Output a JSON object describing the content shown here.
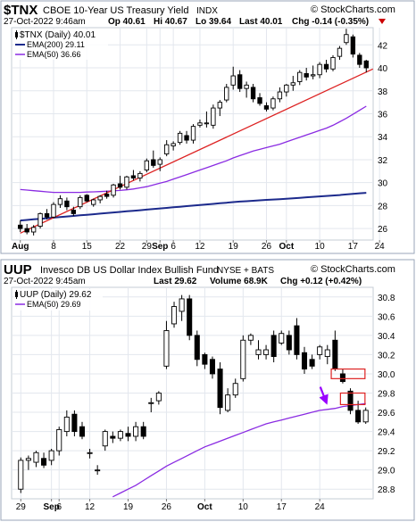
{
  "chart_data": [
    {
      "type": "candlestick",
      "symbol": "$TNX",
      "title": "CBOE 10-Year US Treasury Yield",
      "exchange": "INDX",
      "watermark": "© StockCharts.com",
      "header": {
        "timestamp": "27-Oct-2022 9:46am",
        "open": "Op 40.61",
        "high": "Hi 40.67",
        "low": "Lo 39.64",
        "last": "Last 40.01",
        "change": "Chg -0.14 (-0.35%)",
        "change_color": "#cc0000"
      },
      "legend": [
        {
          "label": "$TNX (Daily) 40.01",
          "color": "#000000",
          "kind": "candle"
        },
        {
          "label": "EMA(200) 29.11",
          "color": "#1c2a8c",
          "kind": "line"
        },
        {
          "label": "EMA(50) 36.66",
          "color": "#8a2be2",
          "kind": "line"
        }
      ],
      "x_tick_labels": [
        "Aug",
        "8",
        "15",
        "22",
        "29",
        "Sep",
        "6",
        "12",
        "19",
        "26",
        "Oct",
        "10",
        "17",
        "24"
      ],
      "y_ticks": [
        26,
        28,
        30,
        32,
        34,
        36,
        38,
        40,
        42
      ],
      "ylim": [
        25,
        43.5
      ],
      "candles": [
        {
          "o": 26.3,
          "h": 26.7,
          "l": 25.7,
          "c": 26.0
        },
        {
          "o": 26.0,
          "h": 26.4,
          "l": 25.5,
          "c": 25.7
        },
        {
          "o": 25.7,
          "h": 26.3,
          "l": 25.4,
          "c": 26.1
        },
        {
          "o": 26.2,
          "h": 27.4,
          "l": 26.0,
          "c": 27.3
        },
        {
          "o": 27.3,
          "h": 27.7,
          "l": 26.8,
          "c": 27.0
        },
        {
          "o": 27.0,
          "h": 28.3,
          "l": 26.9,
          "c": 28.1
        },
        {
          "o": 28.1,
          "h": 28.9,
          "l": 27.8,
          "c": 28.6
        },
        {
          "o": 28.4,
          "h": 28.7,
          "l": 27.6,
          "c": 27.9
        },
        {
          "o": 27.6,
          "h": 27.9,
          "l": 27.1,
          "c": 27.3
        },
        {
          "o": 27.9,
          "h": 28.9,
          "l": 27.7,
          "c": 28.7
        },
        {
          "o": 28.9,
          "h": 29.0,
          "l": 28.3,
          "c": 28.4
        },
        {
          "o": 28.1,
          "h": 28.6,
          "l": 27.9,
          "c": 28.5
        },
        {
          "o": 28.5,
          "h": 28.9,
          "l": 28.2,
          "c": 28.8
        },
        {
          "o": 29.0,
          "h": 29.3,
          "l": 28.6,
          "c": 28.8
        },
        {
          "o": 28.9,
          "h": 29.9,
          "l": 28.7,
          "c": 29.8
        },
        {
          "o": 29.9,
          "h": 30.6,
          "l": 29.4,
          "c": 29.6
        },
        {
          "o": 29.6,
          "h": 30.6,
          "l": 29.4,
          "c": 30.5
        },
        {
          "o": 30.6,
          "h": 31.1,
          "l": 30.2,
          "c": 30.4
        },
        {
          "o": 30.4,
          "h": 31.0,
          "l": 30.1,
          "c": 30.8
        },
        {
          "o": 31.1,
          "h": 32.1,
          "l": 30.9,
          "c": 31.9
        },
        {
          "o": 32.0,
          "h": 32.8,
          "l": 31.3,
          "c": 31.5
        },
        {
          "o": 31.6,
          "h": 32.2,
          "l": 31.0,
          "c": 32.0
        },
        {
          "o": 32.5,
          "h": 33.7,
          "l": 32.3,
          "c": 33.3
        },
        {
          "o": 33.2,
          "h": 33.6,
          "l": 32.8,
          "c": 33.4
        },
        {
          "o": 33.5,
          "h": 34.5,
          "l": 33.3,
          "c": 34.3
        },
        {
          "o": 34.1,
          "h": 34.5,
          "l": 33.4,
          "c": 33.7
        },
        {
          "o": 33.7,
          "h": 35.1,
          "l": 33.4,
          "c": 34.9
        },
        {
          "o": 35.0,
          "h": 35.5,
          "l": 34.8,
          "c": 35.2
        },
        {
          "o": 35.2,
          "h": 36.2,
          "l": 34.8,
          "c": 35.2
        },
        {
          "o": 35.0,
          "h": 36.8,
          "l": 34.7,
          "c": 36.5
        },
        {
          "o": 36.5,
          "h": 37.2,
          "l": 35.8,
          "c": 37.0
        },
        {
          "o": 37.2,
          "h": 38.6,
          "l": 37.0,
          "c": 38.3
        },
        {
          "o": 38.5,
          "h": 40.1,
          "l": 38.1,
          "c": 39.3
        },
        {
          "o": 39.4,
          "h": 39.8,
          "l": 37.9,
          "c": 38.2
        },
        {
          "o": 38.2,
          "h": 38.8,
          "l": 37.4,
          "c": 38.5
        },
        {
          "o": 38.3,
          "h": 38.6,
          "l": 37.0,
          "c": 37.3
        },
        {
          "o": 37.4,
          "h": 37.8,
          "l": 36.7,
          "c": 36.9
        },
        {
          "o": 36.7,
          "h": 37.0,
          "l": 36.2,
          "c": 36.4
        },
        {
          "o": 36.5,
          "h": 37.5,
          "l": 36.3,
          "c": 37.3
        },
        {
          "o": 37.3,
          "h": 38.3,
          "l": 37.0,
          "c": 37.9
        },
        {
          "o": 37.9,
          "h": 38.6,
          "l": 37.5,
          "c": 38.5
        },
        {
          "o": 38.5,
          "h": 39.3,
          "l": 38.0,
          "c": 38.7
        },
        {
          "o": 38.8,
          "h": 39.8,
          "l": 38.5,
          "c": 39.6
        },
        {
          "o": 39.5,
          "h": 40.0,
          "l": 38.9,
          "c": 39.2
        },
        {
          "o": 39.3,
          "h": 40.2,
          "l": 39.0,
          "c": 39.4
        },
        {
          "o": 39.4,
          "h": 40.5,
          "l": 39.1,
          "c": 40.3
        },
        {
          "o": 40.3,
          "h": 40.7,
          "l": 39.6,
          "c": 39.9
        },
        {
          "o": 39.9,
          "h": 41.1,
          "l": 39.7,
          "c": 40.9
        },
        {
          "o": 41.0,
          "h": 41.9,
          "l": 40.7,
          "c": 41.7
        },
        {
          "o": 42.2,
          "h": 43.4,
          "l": 42.0,
          "c": 42.9
        },
        {
          "o": 42.7,
          "h": 42.9,
          "l": 40.9,
          "c": 41.2
        },
        {
          "o": 41.1,
          "h": 41.3,
          "l": 40.0,
          "c": 40.3
        },
        {
          "o": 40.6,
          "h": 40.7,
          "l": 39.6,
          "c": 40.0
        }
      ],
      "ema200": [
        26.7,
        26.75,
        26.8,
        26.85,
        26.9,
        26.95,
        27.0,
        27.05,
        27.1,
        27.15,
        27.2,
        27.25,
        27.3,
        27.35,
        27.4,
        27.45,
        27.5,
        27.55,
        27.6,
        27.65,
        27.7,
        27.75,
        27.8,
        27.85,
        27.9,
        27.95,
        28.0,
        28.05,
        28.1,
        28.15,
        28.2,
        28.25,
        28.3,
        28.35,
        28.38,
        28.42,
        28.46,
        28.5,
        28.53,
        28.56,
        28.6,
        28.64,
        28.68,
        28.72,
        28.76,
        28.8,
        28.84,
        28.88,
        28.92,
        28.97,
        29.02,
        29.07,
        29.11
      ],
      "ema50": [
        29.4,
        29.35,
        29.3,
        29.25,
        29.2,
        29.15,
        29.15,
        29.15,
        29.15,
        29.15,
        29.18,
        29.2,
        29.22,
        29.25,
        29.28,
        29.32,
        29.38,
        29.45,
        29.55,
        29.65,
        29.8,
        29.95,
        30.1,
        30.3,
        30.5,
        30.7,
        30.9,
        31.1,
        31.3,
        31.5,
        31.7,
        31.9,
        32.15,
        32.35,
        32.55,
        32.75,
        32.9,
        33.05,
        33.2,
        33.35,
        33.55,
        33.75,
        33.95,
        34.15,
        34.35,
        34.55,
        34.75,
        35.0,
        35.3,
        35.6,
        35.95,
        36.3,
        36.66
      ],
      "trendline": {
        "from": [
          0,
          25.6
        ],
        "to": [
          52,
          39.9
        ],
        "color": "#dd2222"
      }
    },
    {
      "type": "candlestick",
      "symbol": "UUP",
      "title": "Invesco DB US Dollar Index Bullish Fund",
      "exchange": "NYSE + BATS",
      "watermark": "© StockCharts.com",
      "header": {
        "timestamp": "27-Oct-2022 9:45am",
        "last": "Last 29.62",
        "volume": "Volume 68.9K",
        "change": "Chg +0.12 (+0.42%)",
        "change_color": "#000000"
      },
      "legend": [
        {
          "label": "UUP (Daily) 29.62",
          "color": "#000000",
          "kind": "candle"
        },
        {
          "label": "EMA(50) 29.69",
          "color": "#8a2be2",
          "kind": "line"
        }
      ],
      "x_tick_labels": [
        "29",
        "Sep",
        "6",
        "12",
        "19",
        "26",
        "Oct",
        "10",
        "17",
        "24"
      ],
      "y_ticks": [
        28.8,
        29.0,
        29.2,
        29.4,
        29.6,
        29.8,
        30.0,
        30.2,
        30.4,
        30.6,
        30.8
      ],
      "ylim": [
        28.7,
        30.9
      ],
      "candles": [
        {
          "o": 28.8,
          "h": 29.13,
          "l": 28.76,
          "c": 29.1
        },
        {
          "o": 29.1,
          "h": 29.15,
          "l": 29.0,
          "c": 29.12
        },
        {
          "o": 29.08,
          "h": 29.2,
          "l": 29.03,
          "c": 29.18
        },
        {
          "o": 29.12,
          "h": 29.18,
          "l": 29.02,
          "c": 29.05
        },
        {
          "o": 29.1,
          "h": 29.22,
          "l": 29.05,
          "c": 29.2
        },
        {
          "o": 29.2,
          "h": 29.45,
          "l": 29.15,
          "c": 29.42
        },
        {
          "o": 29.4,
          "h": 29.62,
          "l": 29.35,
          "c": 29.55
        },
        {
          "o": 29.58,
          "h": 29.62,
          "l": 29.35,
          "c": 29.4
        },
        {
          "o": 29.45,
          "h": 29.5,
          "l": 29.32,
          "c": 29.35
        },
        {
          "o": 29.18,
          "h": 29.22,
          "l": 29.12,
          "c": 29.18
        },
        {
          "o": 29.0,
          "h": 29.05,
          "l": 28.95,
          "c": 29.0
        },
        {
          "o": 29.25,
          "h": 29.42,
          "l": 29.2,
          "c": 29.4
        },
        {
          "o": 29.35,
          "h": 29.4,
          "l": 29.28,
          "c": 29.33
        },
        {
          "o": 29.33,
          "h": 29.42,
          "l": 29.3,
          "c": 29.4
        },
        {
          "o": 29.38,
          "h": 29.45,
          "l": 29.3,
          "c": 29.35
        },
        {
          "o": 29.35,
          "h": 29.5,
          "l": 29.3,
          "c": 29.45
        },
        {
          "o": 29.45,
          "h": 29.5,
          "l": 29.32,
          "c": 29.35
        },
        {
          "o": 29.7,
          "h": 29.75,
          "l": 29.6,
          "c": 29.7
        },
        {
          "o": 29.72,
          "h": 29.82,
          "l": 29.68,
          "c": 29.8
        },
        {
          "o": 30.08,
          "h": 30.55,
          "l": 30.05,
          "c": 30.45
        },
        {
          "o": 30.52,
          "h": 30.75,
          "l": 30.48,
          "c": 30.7
        },
        {
          "o": 30.65,
          "h": 30.82,
          "l": 30.55,
          "c": 30.78
        },
        {
          "o": 30.78,
          "h": 30.82,
          "l": 30.35,
          "c": 30.4
        },
        {
          "o": 30.4,
          "h": 30.45,
          "l": 30.08,
          "c": 30.15
        },
        {
          "o": 30.2,
          "h": 30.22,
          "l": 30.05,
          "c": 30.1
        },
        {
          "o": 30.15,
          "h": 30.18,
          "l": 29.95,
          "c": 30.0
        },
        {
          "o": 30.05,
          "h": 30.12,
          "l": 29.58,
          "c": 29.65
        },
        {
          "o": 29.62,
          "h": 29.85,
          "l": 29.6,
          "c": 29.78
        },
        {
          "o": 29.78,
          "h": 29.95,
          "l": 29.75,
          "c": 29.9
        },
        {
          "o": 29.95,
          "h": 30.4,
          "l": 29.92,
          "c": 30.35
        },
        {
          "o": 30.35,
          "h": 30.42,
          "l": 30.3,
          "c": 30.4
        },
        {
          "o": 30.2,
          "h": 30.35,
          "l": 30.15,
          "c": 30.25
        },
        {
          "o": 30.2,
          "h": 30.3,
          "l": 30.15,
          "c": 30.25
        },
        {
          "o": 30.4,
          "h": 30.45,
          "l": 30.12,
          "c": 30.18
        },
        {
          "o": 30.32,
          "h": 30.45,
          "l": 30.3,
          "c": 30.42
        },
        {
          "o": 30.4,
          "h": 30.45,
          "l": 30.2,
          "c": 30.25
        },
        {
          "o": 30.5,
          "h": 30.58,
          "l": 30.15,
          "c": 30.2
        },
        {
          "o": 30.22,
          "h": 30.28,
          "l": 30.0,
          "c": 30.05
        },
        {
          "o": 30.15,
          "h": 30.2,
          "l": 30.05,
          "c": 30.08
        },
        {
          "o": 30.2,
          "h": 30.3,
          "l": 30.15,
          "c": 30.28
        },
        {
          "o": 30.18,
          "h": 30.3,
          "l": 30.1,
          "c": 30.25
        },
        {
          "o": 30.35,
          "h": 30.45,
          "l": 30.03,
          "c": 30.05
        },
        {
          "o": 30.0,
          "h": 30.05,
          "l": 29.9,
          "c": 29.92
        },
        {
          "o": 29.82,
          "h": 29.85,
          "l": 29.58,
          "c": 29.62
        },
        {
          "o": 29.62,
          "h": 29.72,
          "l": 29.48,
          "c": 29.5
        },
        {
          "o": 29.5,
          "h": 29.65,
          "l": 29.48,
          "c": 29.62
        }
      ],
      "ema50": [
        null,
        null,
        null,
        null,
        null,
        null,
        null,
        null,
        null,
        null,
        null,
        null,
        28.72,
        28.76,
        28.8,
        28.84,
        28.89,
        28.94,
        28.99,
        29.04,
        29.08,
        29.12,
        29.16,
        29.2,
        29.24,
        29.27,
        29.3,
        29.33,
        29.36,
        29.39,
        29.42,
        29.45,
        29.48,
        29.5,
        29.52,
        29.54,
        29.56,
        29.58,
        29.6,
        29.62,
        29.63,
        29.64,
        29.66,
        29.67,
        29.68,
        29.69
      ],
      "annotations": {
        "boxes": [
          {
            "index_from": 41,
            "index_to": 44.4,
            "y_top": 30.05,
            "y_bottom": 29.95
          },
          {
            "index_from": 42.2,
            "index_to": 44.4,
            "y_top": 29.8,
            "y_bottom": 29.68
          }
        ],
        "arrow": {
          "color": "#9900ff",
          "target_index": 40,
          "target_y": 29.66
        }
      }
    }
  ]
}
